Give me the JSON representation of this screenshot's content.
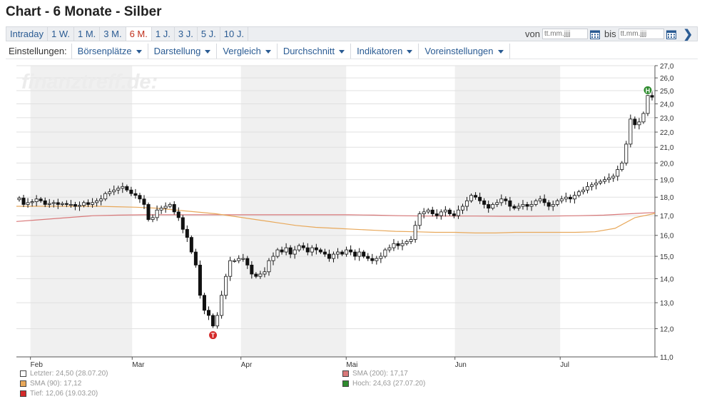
{
  "page_title": "Chart - 6 Monate - Silber",
  "ranges": [
    "Intraday",
    "1 W.",
    "1 M.",
    "3 M.",
    "6 M.",
    "1 J.",
    "3 J.",
    "5 J.",
    "10 J."
  ],
  "active_range": "6 M.",
  "date_range": {
    "from_label": "von",
    "to_label": "bis",
    "placeholder": "tt.mm.jjjj"
  },
  "settings": {
    "label": "Einstellungen:",
    "menus": [
      "Börsenplätze",
      "Darstellung",
      "Vergleich",
      "Durchschnitt",
      "Indikatoren",
      "Voreinstellungen"
    ]
  },
  "watermark": "finanztreff.de:",
  "markers": {
    "low": "T",
    "high": "H"
  },
  "legend": {
    "last": "Letzter: 24,50 (28.07.20)",
    "sma200": "SMA (200): 17,17",
    "sma90": "SMA (90): 17,12",
    "high": "Hoch: 24,63 (27.07.20)",
    "low": "Tief: 12,06 (19.03.20)"
  },
  "colors": {
    "sma200": "#d9797a",
    "sma90": "#e8a85a",
    "high_marker": "#2e8b2e",
    "low_marker": "#d42a2a",
    "band": "#f0f0f0"
  },
  "chart_data": {
    "type": "candlestick",
    "y_axis": {
      "ticks": [
        11,
        12,
        13,
        14,
        15,
        16,
        17,
        18,
        19,
        20,
        21,
        22,
        23,
        24,
        25,
        26,
        27
      ],
      "tick_labels": [
        "11,0",
        "12,0",
        "13,0",
        "14,0",
        "15,0",
        "16,0",
        "17,0",
        "18,0",
        "19,0",
        "20,0",
        "21,0",
        "22,0",
        "23,0",
        "24,0",
        "25,0",
        "26,0",
        "27,0"
      ],
      "range": [
        11,
        27
      ],
      "scale": "log"
    },
    "x_axis": {
      "range": [
        "2020-01-28",
        "2020-07-28"
      ],
      "month_labels": [
        {
          "label": "Feb",
          "date": "2020-02-01"
        },
        {
          "label": "Mar",
          "date": "2020-03-01"
        },
        {
          "label": "Apr",
          "date": "2020-04-01"
        },
        {
          "label": "Mai",
          "date": "2020-05-01"
        },
        {
          "label": "Jun",
          "date": "2020-06-01"
        },
        {
          "label": "Jul",
          "date": "2020-07-01"
        }
      ]
    },
    "grid": true,
    "closes": [
      17.95,
      17.6,
      17.7,
      17.75,
      17.9,
      17.8,
      17.6,
      17.65,
      17.7,
      17.6,
      17.65,
      17.6,
      17.6,
      17.5,
      17.55,
      17.7,
      17.6,
      17.7,
      17.8,
      17.9,
      18.2,
      18.3,
      18.4,
      18.5,
      18.6,
      18.4,
      18.2,
      18.1,
      17.9,
      17.6,
      16.8,
      16.9,
      17.3,
      17.4,
      17.5,
      17.6,
      17.2,
      16.9,
      16.3,
      15.9,
      15.2,
      14.6,
      13.3,
      12.7,
      12.5,
      12.1,
      12.5,
      13.3,
      14.1,
      14.8,
      14.8,
      14.9,
      14.9,
      14.6,
      14.2,
      14.1,
      14.2,
      14.3,
      14.8,
      15.0,
      15.3,
      15.2,
      15.4,
      15.1,
      15.3,
      15.5,
      15.4,
      15.2,
      15.4,
      15.3,
      15.2,
      15.1,
      14.9,
      15.1,
      15.2,
      15.1,
      15.3,
      15.2,
      15.0,
      15.2,
      15.0,
      14.9,
      14.8,
      14.9,
      15.0,
      15.3,
      15.4,
      15.6,
      15.5,
      15.6,
      15.7,
      15.8,
      16.5,
      17.1,
      17.2,
      17.3,
      17.1,
      17.0,
      17.2,
      17.3,
      17.1,
      17.0,
      17.3,
      17.5,
      17.8,
      18.1,
      18.0,
      17.8,
      17.6,
      17.4,
      17.6,
      17.7,
      17.9,
      17.8,
      17.5,
      17.4,
      17.5,
      17.6,
      17.5,
      17.6,
      17.8,
      17.9,
      17.7,
      17.5,
      17.6,
      17.8,
      17.9,
      18.0,
      17.9,
      18.1,
      18.3,
      18.4,
      18.6,
      18.7,
      18.8,
      18.9,
      19.0,
      19.1,
      19.2,
      19.6,
      20.0,
      21.2,
      22.9,
      22.5,
      22.7,
      23.3,
      24.63,
      24.5
    ],
    "sma90": [
      17.5,
      17.5,
      17.5,
      17.5,
      17.5,
      17.48,
      17.45,
      17.4,
      17.3,
      17.2,
      17.1,
      16.95,
      16.8,
      16.65,
      16.5,
      16.4,
      16.35,
      16.3,
      16.25,
      16.2,
      16.18,
      16.15,
      16.15,
      16.12,
      16.12,
      16.15,
      16.15,
      16.15,
      16.15,
      16.18,
      16.35,
      16.9,
      17.12
    ],
    "sma200": [
      16.7,
      16.8,
      16.9,
      17.0,
      17.03,
      17.05,
      17.05,
      17.05,
      17.05,
      17.05,
      17.05,
      17.05,
      17.05,
      17.05,
      17.03,
      17.0,
      16.98,
      16.98,
      16.98,
      16.97,
      16.97,
      16.98,
      17.0,
      17.03,
      17.1,
      17.17
    ]
  }
}
